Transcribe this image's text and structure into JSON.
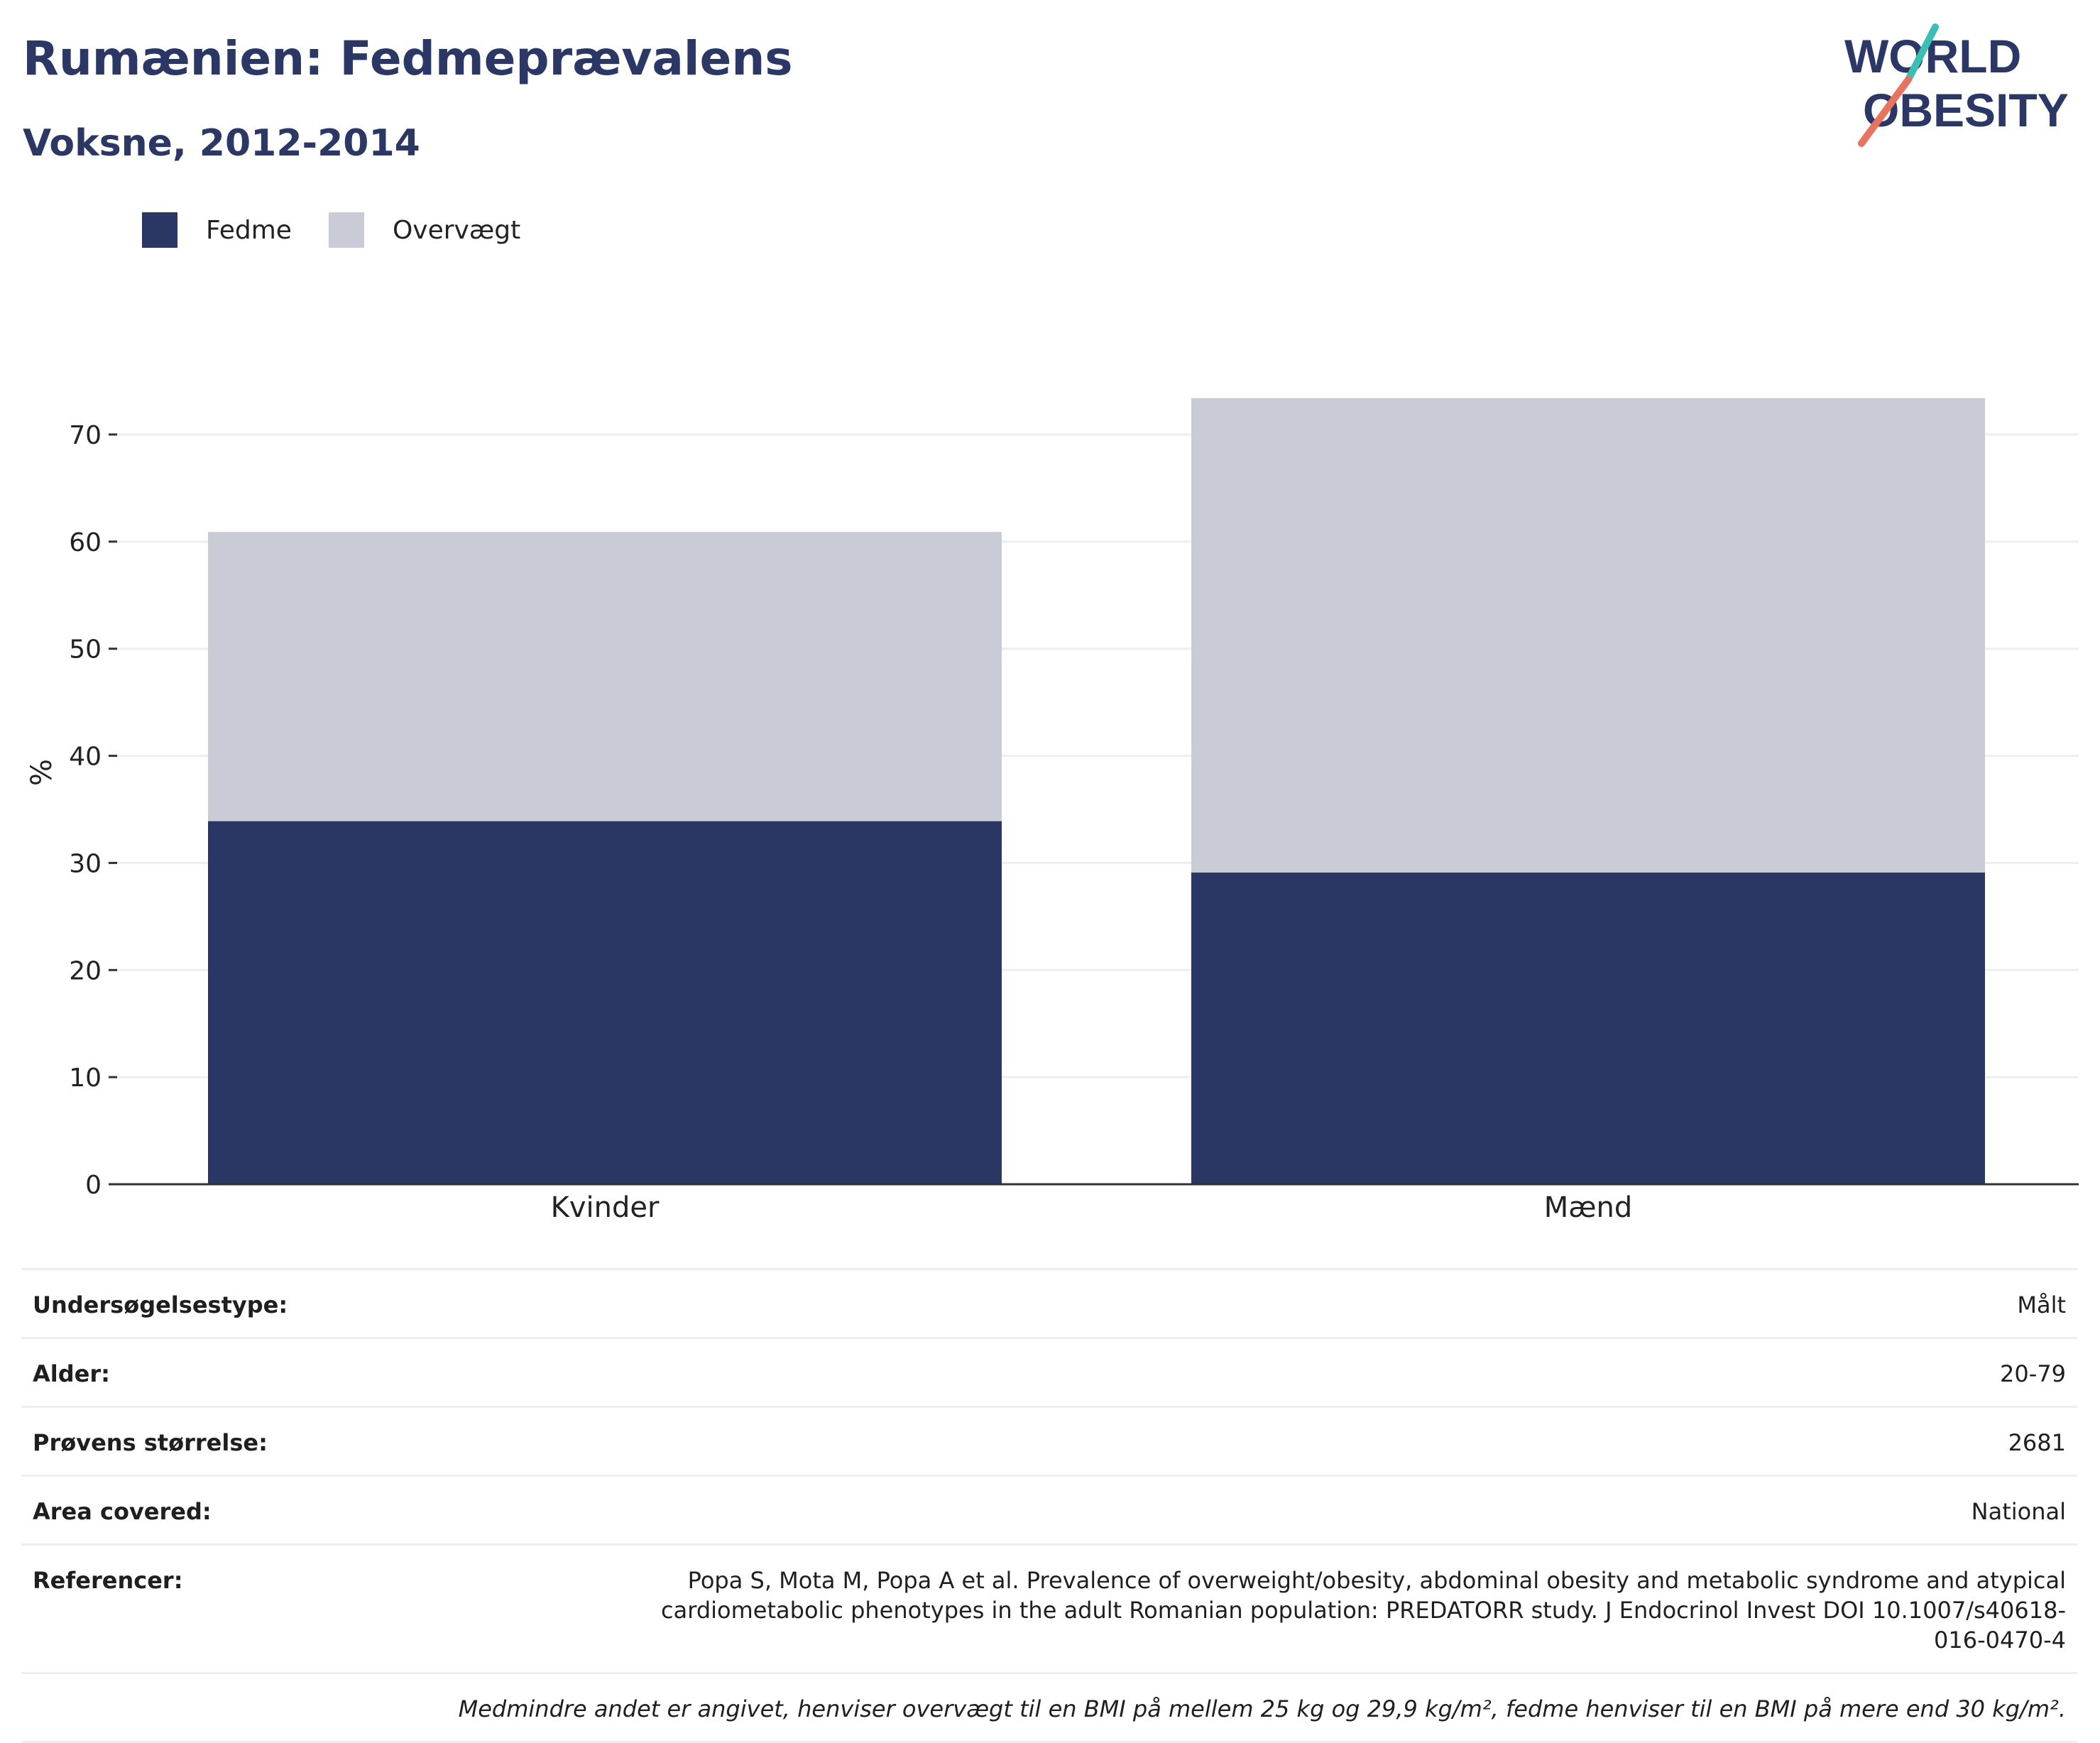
{
  "header": {
    "title": "Rumænien: Fedmeprævalens",
    "subtitle": "Voksne, 2012-2014"
  },
  "logo": {
    "line1": "WORLD",
    "line2": "OBESITY"
  },
  "colors": {
    "fedme": "#2a3764",
    "overvaegt": "#c9cbd6",
    "title": "#2b3764",
    "logo_teal": "#3bbfb5",
    "logo_coral": "#e8735f"
  },
  "chart_data": {
    "type": "bar",
    "stacked": true,
    "categories": [
      "Kvinder",
      "Mænd"
    ],
    "series": [
      {
        "name": "Fedme",
        "values": [
          33.9,
          29.1
        ]
      },
      {
        "name": "Overvægt",
        "values": [
          27.0,
          44.3
        ]
      }
    ],
    "ylabel": "%",
    "xlabel": "",
    "ylim": [
      0,
      76
    ],
    "yticks": [
      0,
      10,
      20,
      30,
      40,
      50,
      60,
      70
    ],
    "grid": true,
    "legend": "top-left"
  },
  "info": {
    "rows": [
      {
        "label": "Undersøgelsestype:",
        "value": "Målt"
      },
      {
        "label": "Alder:",
        "value": "20-79"
      },
      {
        "label": "Prøvens størrelse:",
        "value": "2681"
      },
      {
        "label": "Area covered:",
        "value": "National"
      },
      {
        "label": "Referencer:",
        "value": "Popa S, Mota M, Popa A et al. Prevalence of overweight/obesity, abdominal obesity and metabolic syndrome and atypical cardiometabolic phenotypes in the adult Romanian population: PREDATORR study. J Endocrinol Invest DOI 10.1007/s40618-016-0470-4"
      }
    ],
    "note": "Medmindre andet er angivet, henviser overvægt til en BMI på mellem 25 kg og 29,9 kg/m², fedme henviser til en BMI på mere end 30 kg/m²."
  }
}
